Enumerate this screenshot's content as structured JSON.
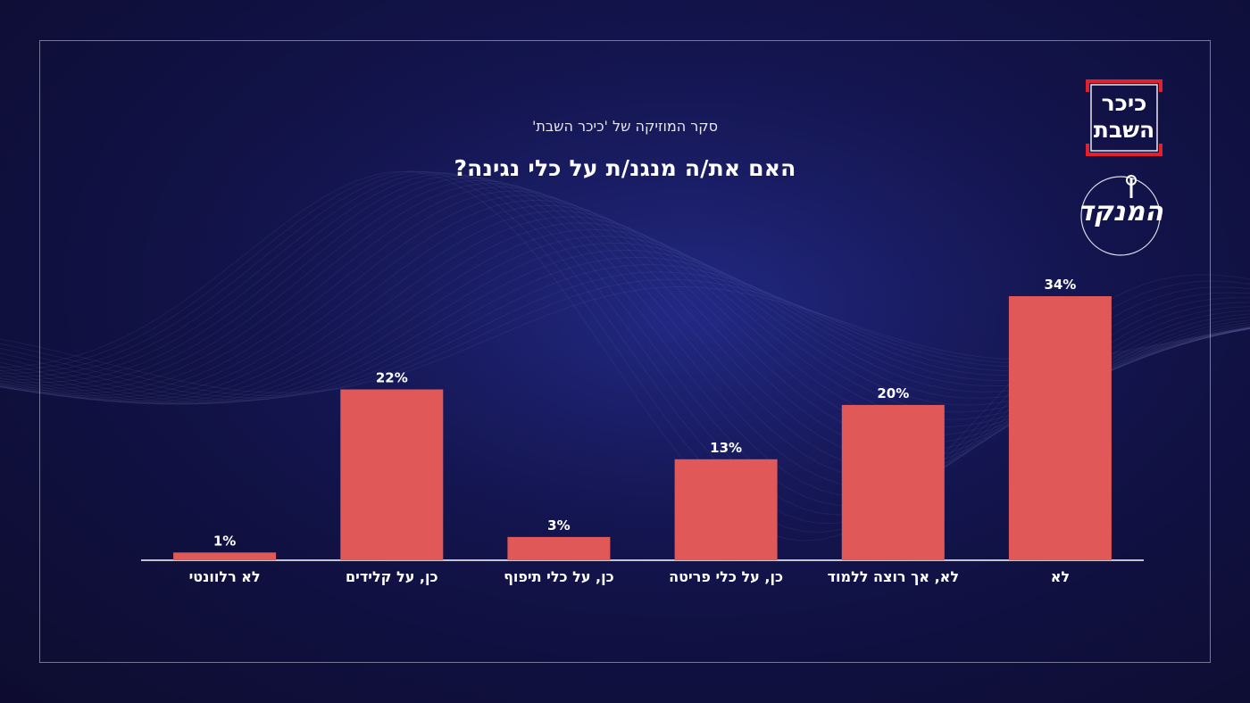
{
  "subtitle": "סקר המוזיקה של 'כיכר השבת'",
  "title": "האם את/ה מנגנ/ת על כלי נגינה?",
  "logo_primary": {
    "line1": "כיכר",
    "line2": "השבת"
  },
  "logo_secondary": {
    "text": "המנקד"
  },
  "colors": {
    "bar": "#e05858",
    "axis": "#ffffff",
    "background": "#12134a",
    "logo_red": "#e3202b"
  },
  "chart_data": {
    "type": "bar",
    "orientation": "vertical",
    "direction": "rtl",
    "categories": [
      "לא רלוונטי",
      "כן, על קלידים",
      "כן, על כלי תיפוף",
      "כן, על כלי פריטה",
      "לא, אך רוצה ללמוד",
      "לא"
    ],
    "values": [
      1,
      22,
      3,
      13,
      20,
      34
    ],
    "value_labels": [
      "1%",
      "22%",
      "3%",
      "13%",
      "20%",
      "34%"
    ],
    "unit": "%",
    "ylim": [
      0,
      34
    ],
    "grid": false,
    "legend": "none"
  }
}
